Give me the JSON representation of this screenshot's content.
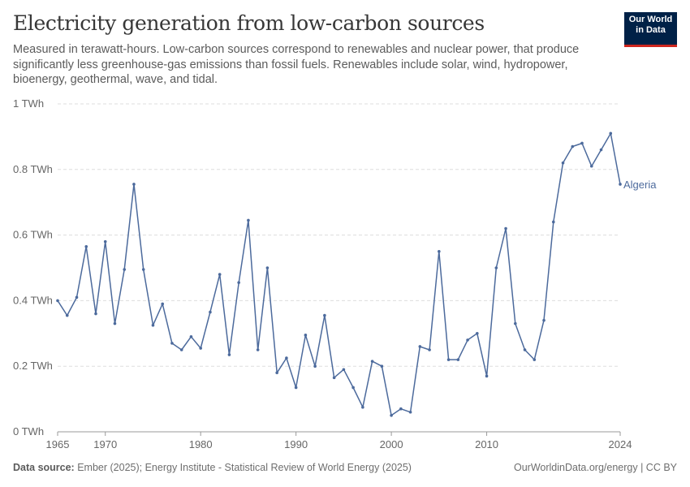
{
  "header": {
    "title": "Electricity generation from low-carbon sources",
    "subtitle": "Measured in terawatt-hours. Low-carbon sources correspond to renewables and nuclear power, that produce significantly less greenhouse-gas emissions than fossil fuels. Renewables include solar, wind, hydropower, bioenergy, geothermal, wave, and tidal."
  },
  "logo": {
    "line1": "Our World",
    "line2": "in Data"
  },
  "footer": {
    "source_label": "Data source:",
    "source_text": "Ember (2025); Energy Institute - Statistical Review of World Energy (2025)",
    "right_text": "OurWorldinData.org/energy | CC BY"
  },
  "colors": {
    "series": "#4c6a9c",
    "grid": "#dddddd",
    "axis": "#666666"
  },
  "chart_data": {
    "type": "line",
    "title": "Electricity generation from low-carbon sources",
    "ylim": [
      0,
      1
    ],
    "y_ticks": [
      0,
      0.2,
      0.4,
      0.6,
      0.8,
      1
    ],
    "y_tick_labels": [
      "0 TWh",
      "0.2 TWh",
      "0.4 TWh",
      "0.6 TWh",
      "0.8 TWh",
      "1 TWh"
    ],
    "xlim": [
      1965,
      2024
    ],
    "x_tick_labels": [
      "1965",
      "1970",
      "1980",
      "1990",
      "2000",
      "2010",
      "2024"
    ],
    "x_ticks": [
      1965,
      1970,
      1980,
      1990,
      2000,
      2010,
      2024
    ],
    "grid": "horizontal-dashed",
    "series": [
      {
        "name": "Algeria",
        "x": [
          1965,
          1966,
          1967,
          1968,
          1969,
          1970,
          1971,
          1972,
          1973,
          1974,
          1975,
          1976,
          1977,
          1978,
          1979,
          1980,
          1981,
          1982,
          1983,
          1984,
          1985,
          1986,
          1987,
          1988,
          1989,
          1990,
          1991,
          1992,
          1993,
          1994,
          1995,
          1996,
          1997,
          1998,
          1999,
          2000,
          2001,
          2002,
          2003,
          2004,
          2005,
          2006,
          2007,
          2008,
          2009,
          2010,
          2011,
          2012,
          2013,
          2014,
          2015,
          2016,
          2017,
          2018,
          2019,
          2020,
          2021,
          2022,
          2023,
          2024
        ],
        "y": [
          0.4,
          0.355,
          0.41,
          0.565,
          0.36,
          0.58,
          0.33,
          0.495,
          0.755,
          0.495,
          0.325,
          0.39,
          0.27,
          0.25,
          0.29,
          0.255,
          0.365,
          0.48,
          0.235,
          0.455,
          0.645,
          0.25,
          0.5,
          0.18,
          0.225,
          0.135,
          0.295,
          0.2,
          0.355,
          0.165,
          0.19,
          0.135,
          0.075,
          0.215,
          0.2,
          0.05,
          0.07,
          0.06,
          0.26,
          0.25,
          0.55,
          0.22,
          0.22,
          0.28,
          0.3,
          0.17,
          0.5,
          0.62,
          0.33,
          0.25,
          0.22,
          0.34,
          0.64,
          0.82,
          0.87,
          0.88,
          0.81,
          0.86,
          0.91,
          0.755
        ]
      }
    ]
  }
}
